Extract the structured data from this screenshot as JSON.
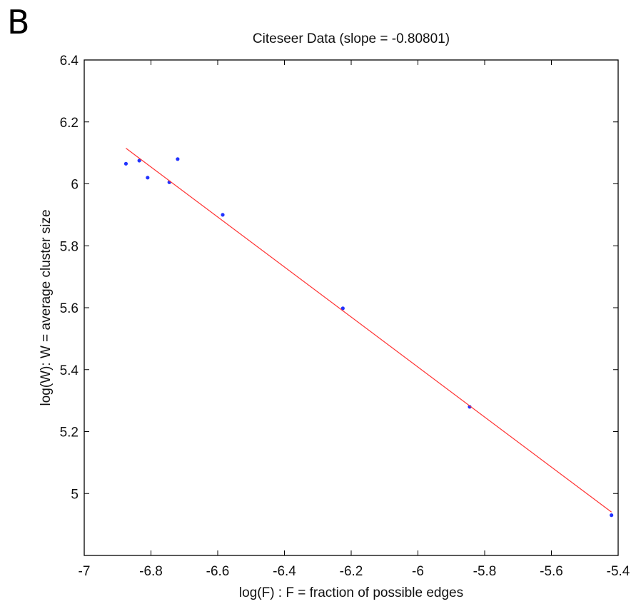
{
  "panel_label": "B",
  "chart_data": {
    "type": "scatter",
    "title": "Citeseer Data (slope = -0.80801)",
    "xlabel": "log(F) : F = fraction of possible edges",
    "ylabel": "log(W): W = average cluster size",
    "xlim": [
      -7,
      -5.4
    ],
    "ylim": [
      4.8,
      6.4
    ],
    "xticks": [
      -7,
      -6.8,
      -6.6,
      -6.4,
      -6.2,
      -6,
      -5.8,
      -5.6,
      -5.4
    ],
    "xtick_labels": [
      "-7",
      "-6.8",
      "-6.6",
      "-6.4",
      "-6.2",
      "-6",
      "-5.8",
      "-5.6",
      "-5.4"
    ],
    "yticks": [
      4.8,
      5,
      5.2,
      5.4,
      5.6,
      5.8,
      6,
      6.2,
      6.4
    ],
    "ytick_labels": [
      "",
      "5",
      "5.2",
      "5.4",
      "5.6",
      "5.8",
      "6",
      "6.2",
      "6.4"
    ],
    "grid": false,
    "series": [
      {
        "kind": "points",
        "color": "#2233ff",
        "x": [
          -6.875,
          -6.835,
          -6.81,
          -6.745,
          -6.72,
          -6.585,
          -6.225,
          -5.845,
          -5.42
        ],
        "y": [
          6.065,
          6.075,
          6.02,
          6.005,
          6.08,
          5.9,
          5.598,
          5.28,
          4.93
        ]
      },
      {
        "kind": "fit-line",
        "color": "#ff3333",
        "x": [
          -6.875,
          -5.42
        ],
        "y": [
          6.115,
          4.94
        ]
      }
    ]
  }
}
